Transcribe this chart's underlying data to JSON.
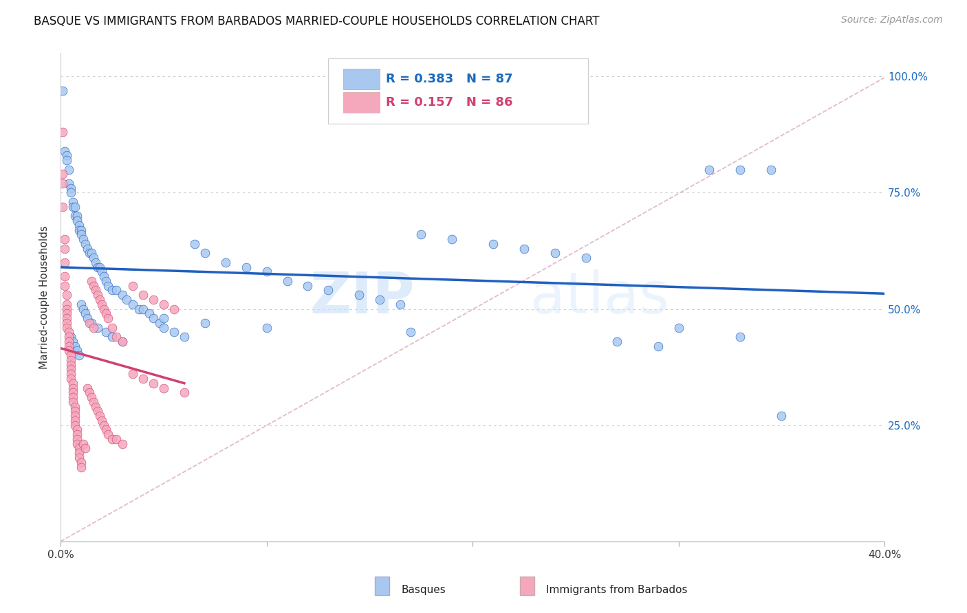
{
  "title": "BASQUE VS IMMIGRANTS FROM BARBADOS MARRIED-COUPLE HOUSEHOLDS CORRELATION CHART",
  "source": "Source: ZipAtlas.com",
  "ylabel": "Married-couple Households",
  "xlim": [
    0.0,
    0.4
  ],
  "ylim": [
    0.0,
    1.05
  ],
  "xticks": [
    0.0,
    0.1,
    0.2,
    0.3,
    0.4
  ],
  "xtick_labels": [
    "0.0%",
    "",
    "",
    "",
    "40.0%"
  ],
  "ytick_labels_right": [
    "",
    "25.0%",
    "50.0%",
    "75.0%",
    "100.0%"
  ],
  "yticks": [
    0.0,
    0.25,
    0.5,
    0.75,
    1.0
  ],
  "legend_blue_label": "Basques",
  "legend_pink_label": "Immigrants from Barbados",
  "R_blue": 0.383,
  "N_blue": 87,
  "R_pink": 0.157,
  "N_pink": 86,
  "blue_color": "#a8c8f0",
  "pink_color": "#f5a8bc",
  "blue_line_color": "#2060c0",
  "pink_line_color": "#d04070",
  "blue_dash_color": "#c0d8f0",
  "pink_dash_color": "#f0b0c0",
  "watermark_zip": "ZIP",
  "watermark_atlas": "atlas",
  "background_color": "#ffffff",
  "blue_scatter_x": [
    0.001,
    0.002,
    0.003,
    0.003,
    0.004,
    0.004,
    0.005,
    0.005,
    0.006,
    0.006,
    0.007,
    0.007,
    0.008,
    0.008,
    0.009,
    0.009,
    0.01,
    0.01,
    0.011,
    0.012,
    0.013,
    0.014,
    0.015,
    0.016,
    0.017,
    0.018,
    0.019,
    0.02,
    0.021,
    0.022,
    0.023,
    0.025,
    0.027,
    0.03,
    0.032,
    0.035,
    0.038,
    0.04,
    0.043,
    0.045,
    0.048,
    0.05,
    0.055,
    0.06,
    0.065,
    0.07,
    0.08,
    0.09,
    0.1,
    0.11,
    0.12,
    0.13,
    0.145,
    0.155,
    0.165,
    0.175,
    0.19,
    0.21,
    0.225,
    0.24,
    0.255,
    0.27,
    0.29,
    0.3,
    0.315,
    0.33,
    0.345,
    0.005,
    0.006,
    0.007,
    0.008,
    0.009,
    0.01,
    0.011,
    0.012,
    0.013,
    0.015,
    0.018,
    0.022,
    0.025,
    0.03,
    0.05,
    0.07,
    0.1,
    0.17,
    0.33,
    0.35
  ],
  "blue_scatter_y": [
    0.97,
    0.84,
    0.83,
    0.82,
    0.8,
    0.77,
    0.76,
    0.75,
    0.73,
    0.72,
    0.72,
    0.7,
    0.7,
    0.69,
    0.68,
    0.67,
    0.67,
    0.66,
    0.65,
    0.64,
    0.63,
    0.62,
    0.62,
    0.61,
    0.6,
    0.59,
    0.59,
    0.58,
    0.57,
    0.56,
    0.55,
    0.54,
    0.54,
    0.53,
    0.52,
    0.51,
    0.5,
    0.5,
    0.49,
    0.48,
    0.47,
    0.46,
    0.45,
    0.44,
    0.64,
    0.62,
    0.6,
    0.59,
    0.58,
    0.56,
    0.55,
    0.54,
    0.53,
    0.52,
    0.51,
    0.66,
    0.65,
    0.64,
    0.63,
    0.62,
    0.61,
    0.43,
    0.42,
    0.46,
    0.8,
    0.44,
    0.8,
    0.44,
    0.43,
    0.42,
    0.41,
    0.4,
    0.51,
    0.5,
    0.49,
    0.48,
    0.47,
    0.46,
    0.45,
    0.44,
    0.43,
    0.48,
    0.47,
    0.46,
    0.45,
    0.8,
    0.27
  ],
  "pink_scatter_x": [
    0.001,
    0.001,
    0.001,
    0.001,
    0.002,
    0.002,
    0.002,
    0.002,
    0.002,
    0.003,
    0.003,
    0.003,
    0.003,
    0.003,
    0.003,
    0.003,
    0.004,
    0.004,
    0.004,
    0.004,
    0.004,
    0.005,
    0.005,
    0.005,
    0.005,
    0.005,
    0.005,
    0.006,
    0.006,
    0.006,
    0.006,
    0.006,
    0.007,
    0.007,
    0.007,
    0.007,
    0.007,
    0.008,
    0.008,
    0.008,
    0.008,
    0.009,
    0.009,
    0.009,
    0.01,
    0.01,
    0.011,
    0.012,
    0.013,
    0.014,
    0.015,
    0.016,
    0.017,
    0.018,
    0.019,
    0.02,
    0.021,
    0.022,
    0.023,
    0.025,
    0.027,
    0.03,
    0.035,
    0.04,
    0.045,
    0.05,
    0.055,
    0.015,
    0.016,
    0.017,
    0.018,
    0.019,
    0.02,
    0.021,
    0.022,
    0.023,
    0.025,
    0.027,
    0.03,
    0.035,
    0.04,
    0.045,
    0.05,
    0.06,
    0.014,
    0.016
  ],
  "pink_scatter_y": [
    0.88,
    0.79,
    0.77,
    0.72,
    0.65,
    0.63,
    0.6,
    0.57,
    0.55,
    0.53,
    0.51,
    0.5,
    0.49,
    0.48,
    0.47,
    0.46,
    0.45,
    0.44,
    0.43,
    0.42,
    0.41,
    0.4,
    0.39,
    0.38,
    0.37,
    0.36,
    0.35,
    0.34,
    0.33,
    0.32,
    0.31,
    0.3,
    0.29,
    0.28,
    0.27,
    0.26,
    0.25,
    0.24,
    0.23,
    0.22,
    0.21,
    0.2,
    0.19,
    0.18,
    0.17,
    0.16,
    0.21,
    0.2,
    0.33,
    0.32,
    0.31,
    0.3,
    0.29,
    0.28,
    0.27,
    0.26,
    0.25,
    0.24,
    0.23,
    0.22,
    0.22,
    0.21,
    0.55,
    0.53,
    0.52,
    0.51,
    0.5,
    0.56,
    0.55,
    0.54,
    0.53,
    0.52,
    0.51,
    0.5,
    0.49,
    0.48,
    0.46,
    0.44,
    0.43,
    0.36,
    0.35,
    0.34,
    0.33,
    0.32,
    0.47,
    0.46
  ]
}
